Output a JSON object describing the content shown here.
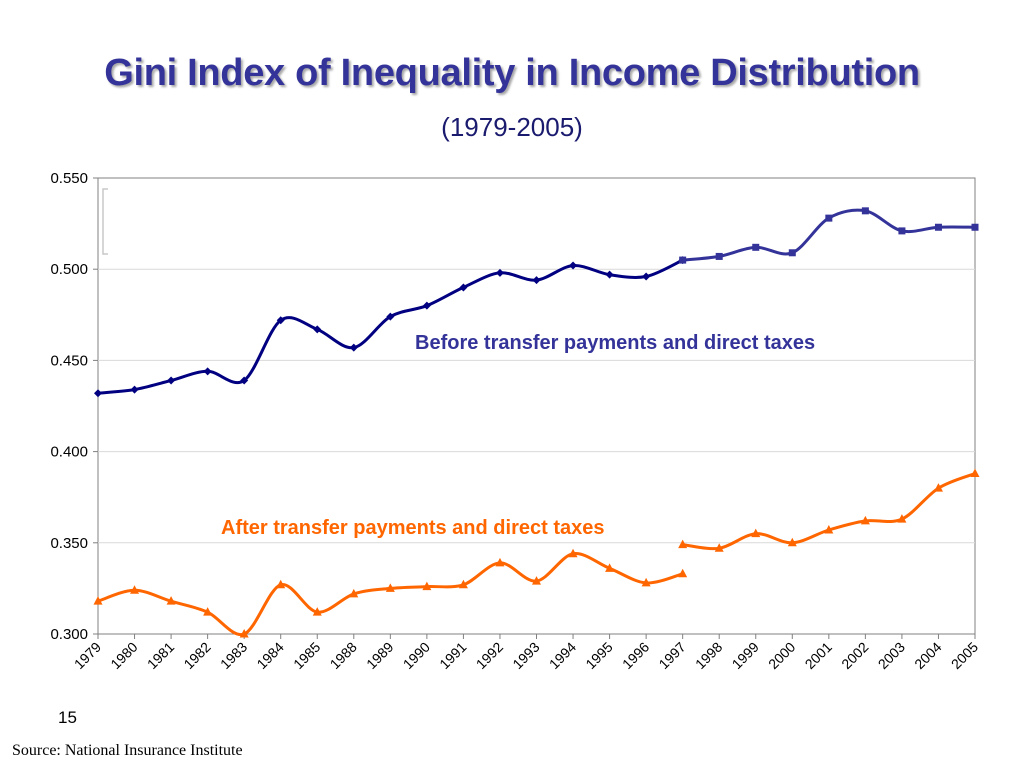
{
  "slide": {
    "title": "Gini Index of Inequality in Income Distribution",
    "subtitle": "(1979-2005)",
    "slide_number": "15",
    "source": "Source: National Insurance Institute"
  },
  "chart_data": {
    "type": "line",
    "categories": [
      "1979",
      "1980",
      "1981",
      "1982",
      "1983",
      "1984",
      "1985",
      "1988",
      "1989",
      "1990",
      "1991",
      "1992",
      "1993",
      "1994",
      "1995",
      "1996",
      "1997",
      "1998",
      "1999",
      "2000",
      "2001",
      "2002",
      "2003",
      "2004",
      "2005"
    ],
    "ylim": [
      0.3,
      0.55
    ],
    "yticks": [
      "0.300",
      "0.350",
      "0.400",
      "0.450",
      "0.500",
      "0.550"
    ],
    "ytick_values": [
      0.3,
      0.35,
      0.4,
      0.45,
      0.5,
      0.55
    ],
    "grid": true,
    "series": [
      {
        "name": "Before transfer payments and direct taxes",
        "color": "#000080",
        "segments": [
          {
            "start": 0,
            "color": "#000080",
            "marker": "diamond",
            "values": [
              0.432,
              0.434,
              0.439,
              0.444,
              0.439,
              0.472,
              0.467,
              0.457,
              0.474,
              0.48,
              0.49,
              0.498,
              0.494,
              0.502,
              0.497,
              0.496,
              0.505
            ]
          },
          {
            "start": 16,
            "color": "#333399",
            "marker": "square",
            "values": [
              0.505,
              0.507,
              0.512,
              0.509,
              0.528,
              0.532,
              0.521,
              0.523,
              0.523
            ]
          }
        ]
      },
      {
        "name": "After transfer payments and direct taxes",
        "color": "#FF6600",
        "segments": [
          {
            "start": 0,
            "color": "#FF6600",
            "marker": "triangle",
            "values": [
              0.318,
              0.324,
              0.318,
              0.312,
              0.3,
              0.327,
              0.312,
              0.322,
              0.325,
              0.326,
              0.327,
              0.339,
              0.329,
              0.344,
              0.336,
              0.328,
              0.333
            ]
          },
          {
            "start": 16,
            "color": "#FF6600",
            "marker": "triangle",
            "values": [
              0.349,
              0.347,
              0.355,
              0.35,
              0.357,
              0.362,
              0.363,
              0.38,
              0.388
            ]
          }
        ]
      }
    ]
  }
}
